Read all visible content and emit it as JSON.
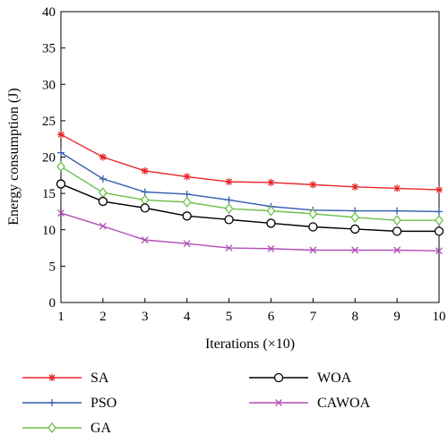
{
  "chart_data": {
    "type": "line",
    "title": "",
    "xlabel": "Iterations (×10)",
    "ylabel": "Energy consumption (J)",
    "x": [
      1,
      2,
      3,
      4,
      5,
      6,
      7,
      8,
      9,
      10
    ],
    "xlim": [
      1,
      10
    ],
    "ylim": [
      0,
      40
    ],
    "xticks": [
      1,
      2,
      3,
      4,
      5,
      6,
      7,
      8,
      9,
      10
    ],
    "yticks": [
      0,
      5,
      10,
      15,
      20,
      25,
      30,
      35,
      40
    ],
    "grid": false,
    "legend_position": "below",
    "series": [
      {
        "name": "SA",
        "color": "#e8262a",
        "marker": "asterisk",
        "values": [
          23.1,
          20.0,
          18.1,
          17.3,
          16.6,
          16.5,
          16.2,
          15.9,
          15.7,
          15.5
        ]
      },
      {
        "name": "PSO",
        "color": "#3a5fb0",
        "marker": "plus",
        "values": [
          20.6,
          17.0,
          15.2,
          14.9,
          14.1,
          13.2,
          12.7,
          12.6,
          12.6,
          12.5
        ]
      },
      {
        "name": "GA",
        "color": "#6cc04a",
        "marker": "diamond",
        "values": [
          18.7,
          15.1,
          14.1,
          13.8,
          12.9,
          12.6,
          12.2,
          11.7,
          11.3,
          11.3
        ]
      },
      {
        "name": "WOA",
        "color": "#000000",
        "marker": "circle",
        "values": [
          16.3,
          13.9,
          13.0,
          11.9,
          11.4,
          10.9,
          10.4,
          10.1,
          9.8,
          9.8
        ]
      },
      {
        "name": "CAWOA",
        "color": "#b24fb6",
        "marker": "x",
        "values": [
          12.3,
          10.5,
          8.6,
          8.1,
          7.5,
          7.4,
          7.2,
          7.2,
          7.2,
          7.1
        ]
      }
    ]
  }
}
